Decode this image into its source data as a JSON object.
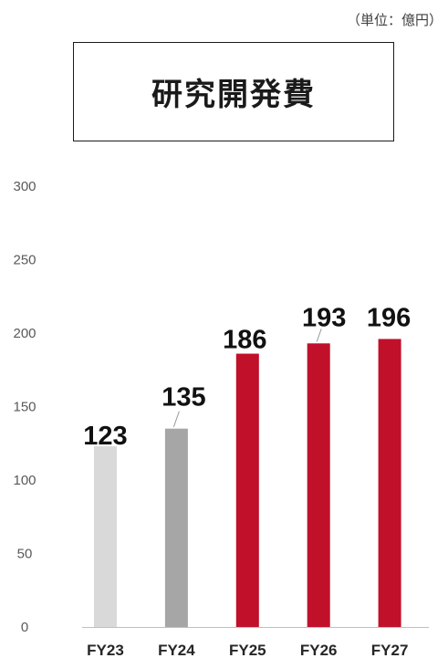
{
  "chart_data": {
    "type": "bar",
    "title": "研究開発費",
    "unit": "（単位：億円）",
    "categories": [
      "FY23",
      "FY24",
      "FY25",
      "FY26",
      "FY27"
    ],
    "values": [
      123,
      135,
      186,
      193,
      196
    ],
    "yticks": [
      0,
      50,
      100,
      150,
      200,
      250,
      300
    ],
    "ylim": [
      0,
      300
    ],
    "grid": false,
    "legend": "none",
    "data_labels": true,
    "colors": {
      "bars": [
        "#d9d9d9",
        "#a6a6a6",
        "#c0102a",
        "#c0102a",
        "#c0102a"
      ],
      "axis_line": "#bfbfbf",
      "leader_line": "#9a9a9a"
    }
  }
}
